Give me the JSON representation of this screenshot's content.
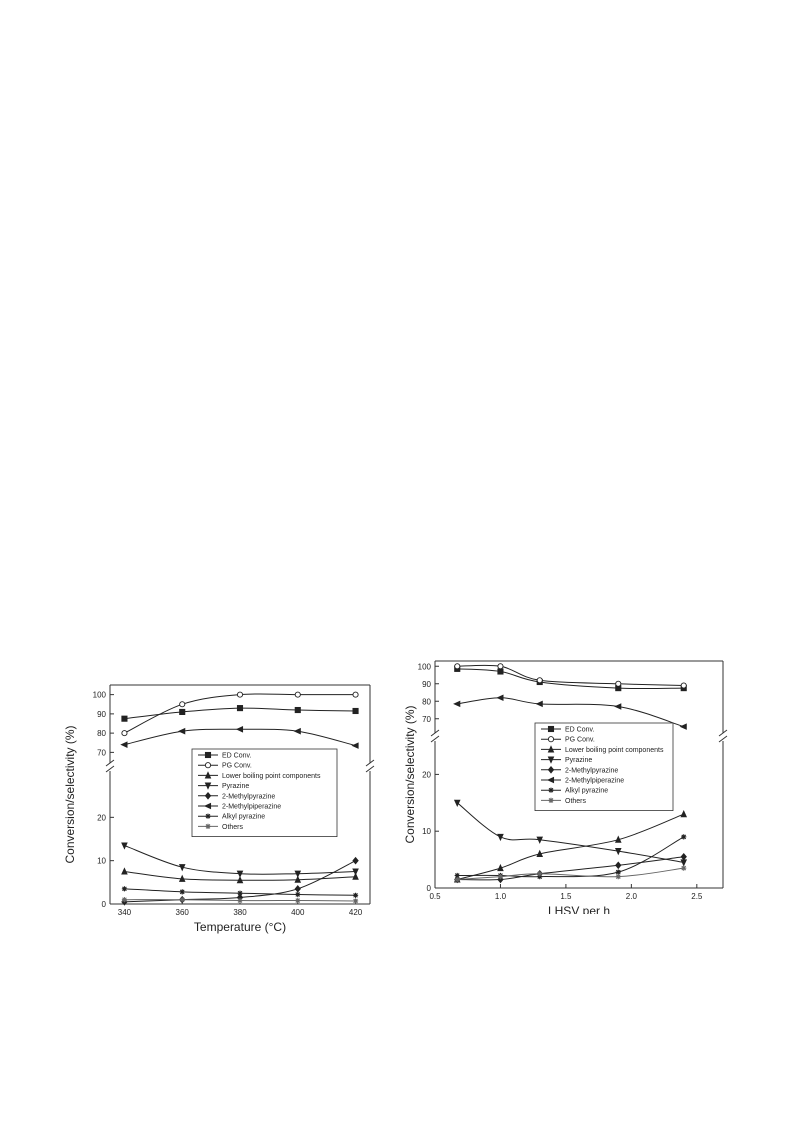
{
  "chart_data": [
    {
      "type": "line",
      "xlabel": "Temperature (°C)",
      "ylabel": "Conversion/selectivity (%)",
      "xlim": [
        335,
        425
      ],
      "xticks": [
        340,
        360,
        380,
        400,
        420
      ],
      "ylim_lower": [
        0,
        30
      ],
      "ylim_upper": [
        65,
        105
      ],
      "yticks_lower": [
        0,
        10,
        20
      ],
      "yticks_upper": [
        70,
        80,
        90,
        100
      ],
      "broken_y_axis": true,
      "legend_position": "center-right",
      "grid": false,
      "x": [
        340,
        360,
        380,
        400,
        420
      ],
      "series": [
        {
          "name": "ED Conv.",
          "marker": "square",
          "values": [
            87.5,
            91,
            93,
            92,
            91.5
          ]
        },
        {
          "name": "PG Conv.",
          "marker": "circle",
          "values": [
            80,
            95,
            100,
            100,
            100
          ]
        },
        {
          "name": "Lower boiling point components",
          "marker": "triangle-up",
          "values": [
            7.5,
            5.8,
            5.5,
            5.6,
            6.3
          ]
        },
        {
          "name": "Pyrazine",
          "marker": "triangle-down",
          "values": [
            13.5,
            8.5,
            7,
            7,
            7.5
          ]
        },
        {
          "name": "2-Methylpyrazine",
          "marker": "diamond",
          "values": [
            0.5,
            1,
            1.5,
            3.5,
            10
          ]
        },
        {
          "name": "2-Methylpiperazine",
          "marker": "triangle-left",
          "values": [
            74,
            81,
            82,
            81,
            73.5
          ]
        },
        {
          "name": "Alkyl pyrazine",
          "marker": "star",
          "values": [
            3.5,
            2.8,
            2.5,
            2.2,
            2
          ]
        },
        {
          "name": "Others",
          "marker": "star",
          "values": [
            1,
            1,
            0.8,
            0.8,
            0.7
          ]
        }
      ]
    },
    {
      "type": "line",
      "xlabel": "LHSV per h",
      "ylabel": "Conversion/selectivity (%)",
      "xlim": [
        0.5,
        2.7
      ],
      "xticks": [
        0.5,
        1.0,
        1.5,
        2.0,
        2.5
      ],
      "ylim_lower": [
        0,
        25
      ],
      "ylim_upper": [
        63,
        103
      ],
      "yticks_lower": [
        0,
        10,
        20
      ],
      "yticks_upper": [
        70,
        80,
        90,
        100
      ],
      "broken_y_axis": true,
      "legend_position": "center",
      "grid": false,
      "x": [
        0.67,
        1.0,
        1.3,
        1.9,
        2.4
      ],
      "series": [
        {
          "name": "ED Conv.",
          "marker": "square",
          "values": [
            98.5,
            97,
            91,
            87.5,
            87.5
          ]
        },
        {
          "name": "PG Conv.",
          "marker": "circle",
          "values": [
            100,
            100,
            92,
            90,
            89
          ]
        },
        {
          "name": "Lower boiling point components",
          "marker": "triangle-up",
          "values": [
            1.5,
            3.5,
            6,
            8.5,
            13
          ]
        },
        {
          "name": "Pyrazine",
          "marker": "triangle-down",
          "values": [
            15,
            9,
            8.5,
            6.5,
            4.5
          ]
        },
        {
          "name": "2-Methylpyrazine",
          "marker": "diamond",
          "values": [
            1.5,
            1.5,
            2.5,
            4,
            5.5
          ]
        },
        {
          "name": "2-Methylpiperazine",
          "marker": "triangle-left",
          "values": [
            78.5,
            82,
            78.5,
            77,
            65.5
          ]
        },
        {
          "name": "Alkyl pyrazine",
          "marker": "star",
          "values": [
            2.2,
            2.2,
            2,
            2.8,
            9
          ]
        },
        {
          "name": "Others",
          "marker": "star",
          "values": [
            1.5,
            2,
            2.5,
            2,
            3.5
          ]
        }
      ]
    }
  ]
}
